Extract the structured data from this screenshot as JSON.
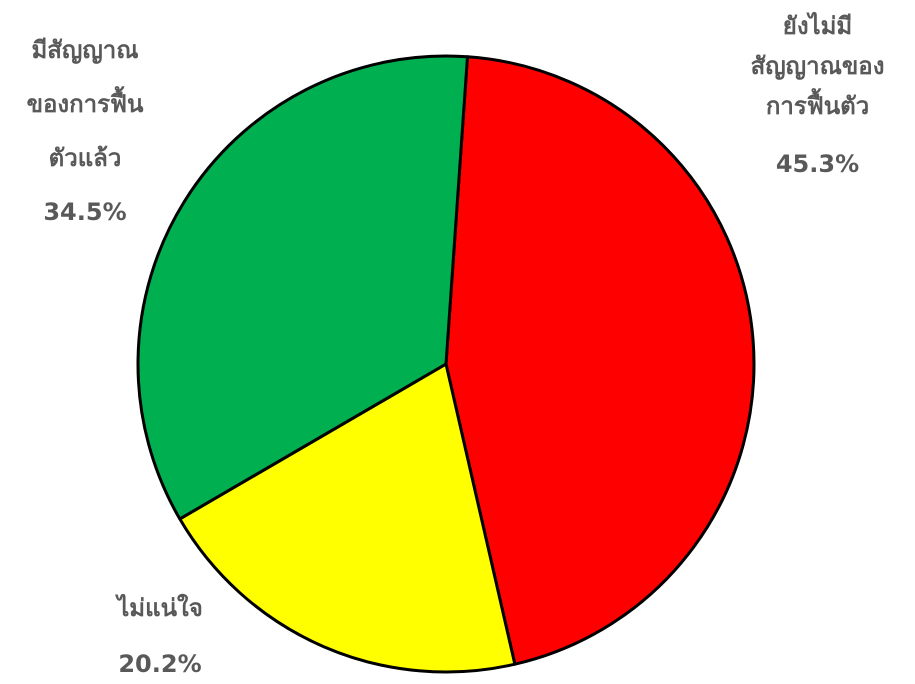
{
  "chart_data": {
    "type": "pie",
    "start_angle_deg": 4,
    "direction": "clockwise",
    "slices": [
      {
        "label_lines": [
          "ยังไม่มี",
          "สัญญาณของ",
          "การฟื้นตัว"
        ],
        "value": 45.3,
        "value_label": "45.3%",
        "color": "#ff0000"
      },
      {
        "label_lines": [
          "ไม่แน่ใจ"
        ],
        "value": 20.2,
        "value_label": "20.2%",
        "color": "#ffff00"
      },
      {
        "label_lines": [
          "มีสัญญาณ",
          "ของการฟื้น",
          "ตัวแล้ว"
        ],
        "value": 34.5,
        "value_label": "34.5%",
        "color": "#00b050"
      }
    ]
  }
}
